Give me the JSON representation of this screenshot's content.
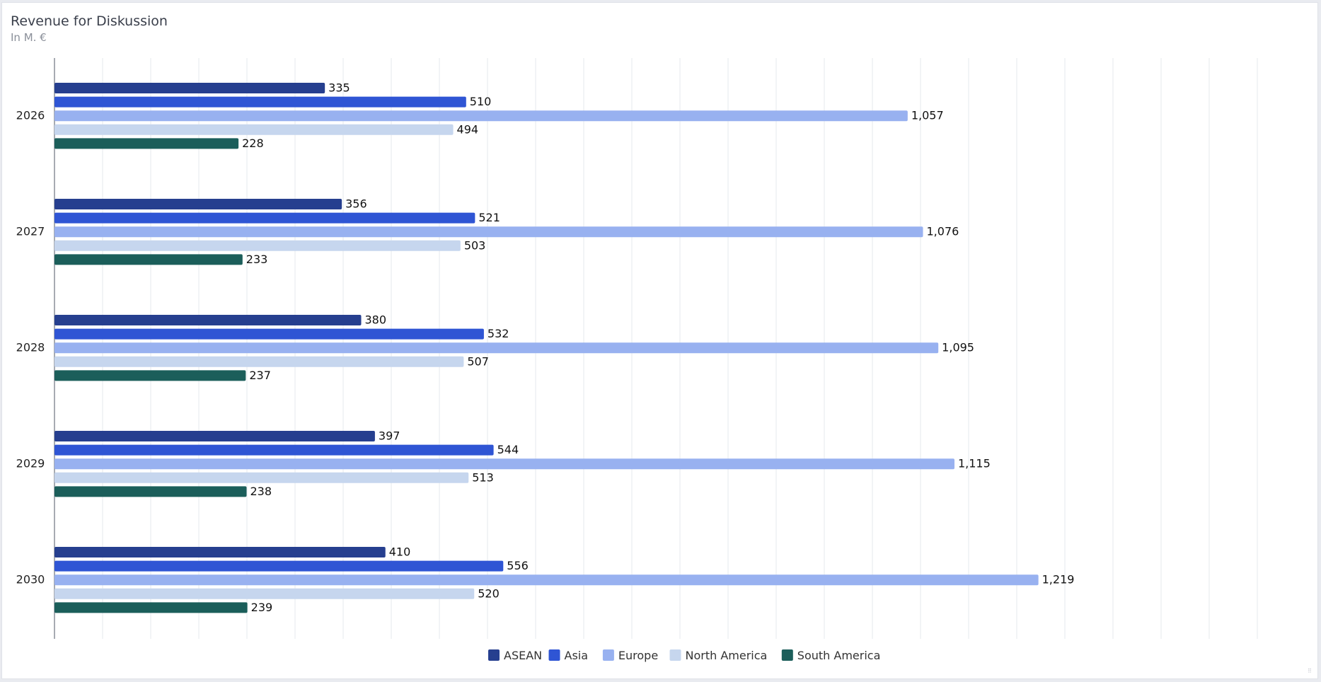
{
  "header": {
    "title": "Revenue for Diskussion",
    "subtitle": "In M. €"
  },
  "colors": {
    "ASEAN": "#263f8f",
    "Asia": "#2f55d4",
    "Europe": "#98b1f0",
    "North America": "#c6d6ee",
    "South America": "#1b5e5a"
  },
  "chart_data": {
    "type": "bar",
    "orientation": "horizontal",
    "categories": [
      "2026",
      "2027",
      "2028",
      "2029",
      "2030"
    ],
    "series": [
      {
        "name": "ASEAN",
        "values": [
          335,
          356,
          380,
          397,
          410
        ]
      },
      {
        "name": "Asia",
        "values": [
          510,
          521,
          532,
          544,
          556
        ]
      },
      {
        "name": "Europe",
        "values": [
          1057,
          1076,
          1095,
          1115,
          1219
        ]
      },
      {
        "name": "North America",
        "values": [
          494,
          503,
          507,
          513,
          520
        ]
      },
      {
        "name": "South America",
        "values": [
          228,
          233,
          237,
          238,
          239
        ]
      }
    ],
    "data_labels": [
      [
        "335",
        "510",
        "1,057",
        "494",
        "228"
      ],
      [
        "356",
        "521",
        "1,076",
        "503",
        "233"
      ],
      [
        "380",
        "532",
        "1,095",
        "507",
        "237"
      ],
      [
        "397",
        "544",
        "1,115",
        "513",
        "238"
      ],
      [
        "410",
        "556",
        "1,219",
        "520",
        "239"
      ]
    ],
    "title": "Revenue for Diskussion",
    "subtitle": "In M. €",
    "xlim": [
      0,
      1300
    ],
    "grid": "vertical",
    "legend_position": "bottom-center"
  }
}
